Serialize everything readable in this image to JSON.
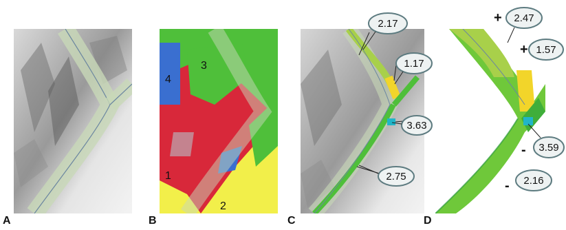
{
  "panels": [
    {
      "letter": "A"
    },
    {
      "letter": "B",
      "zones": [
        "1",
        "2",
        "3",
        "4"
      ]
    },
    {
      "letter": "C",
      "callouts": [
        "2.17",
        "1.17",
        "3.63",
        "2.75"
      ]
    },
    {
      "letter": "D",
      "callouts": [
        "2.47",
        "1.57",
        "3.59",
        "2.16"
      ],
      "signs": [
        "+",
        "+",
        "-",
        "-"
      ]
    }
  ],
  "colors": {
    "terrain_light": "#e6e6e6",
    "terrain_dark": "#8a8a8a",
    "corridor": "#c8d8b8",
    "green": "#4fbf3a",
    "red": "#d8283a",
    "blue": "#3a6fd0",
    "yellow": "#f2ef4a",
    "cyan": "#20b5c8",
    "callout_fill": "#eef2f2",
    "callout_stroke": "#5d7b80"
  }
}
